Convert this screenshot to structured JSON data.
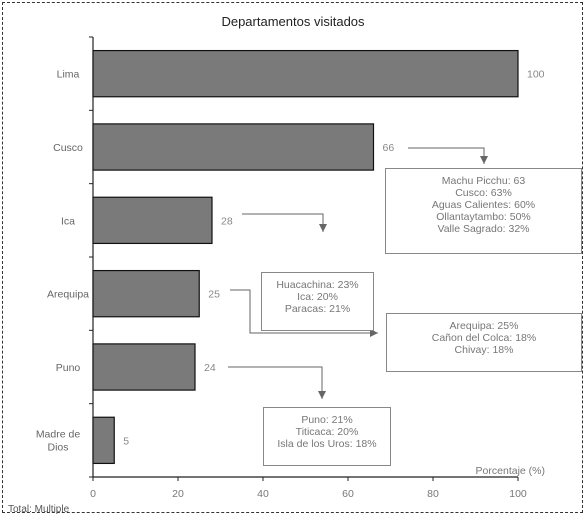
{
  "chart_data": {
    "type": "bar",
    "orientation": "horizontal",
    "title": "Departamentos visitados",
    "xlabel": "Porcentaje (%)",
    "ylabel": "",
    "xlim": [
      0,
      100
    ],
    "xticks": [
      0,
      20,
      40,
      60,
      80,
      100
    ],
    "categories": [
      "Lima",
      "Cusco",
      "Ica",
      "Arequipa",
      "Puno",
      "Madre de Dios"
    ],
    "values": [
      100,
      66,
      28,
      25,
      24,
      5
    ],
    "bar_color": "#7a7a7a",
    "grid": false,
    "annotations": [
      {
        "category": "Cusco",
        "lines": [
          "Machu Picchu: 63",
          "Cusco: 63%",
          "Aguas Calientes: 60%",
          "Ollantaytambo: 50%",
          "Valle Sagrado: 32%"
        ]
      },
      {
        "category": "Ica",
        "lines": [
          "Huacachina: 23%",
          "Ica: 20%",
          "Paracas: 21%"
        ]
      },
      {
        "category": "Arequipa",
        "lines": [
          "Arequipa: 25%",
          "Cañon del Colca: 18%",
          "Chivay: 18%"
        ]
      },
      {
        "category": "Puno",
        "lines": [
          "Puno: 21%",
          "Titicaca: 20%",
          "Isla de los Uros: 18%"
        ]
      }
    ],
    "footnote": "Total: Multiple"
  }
}
